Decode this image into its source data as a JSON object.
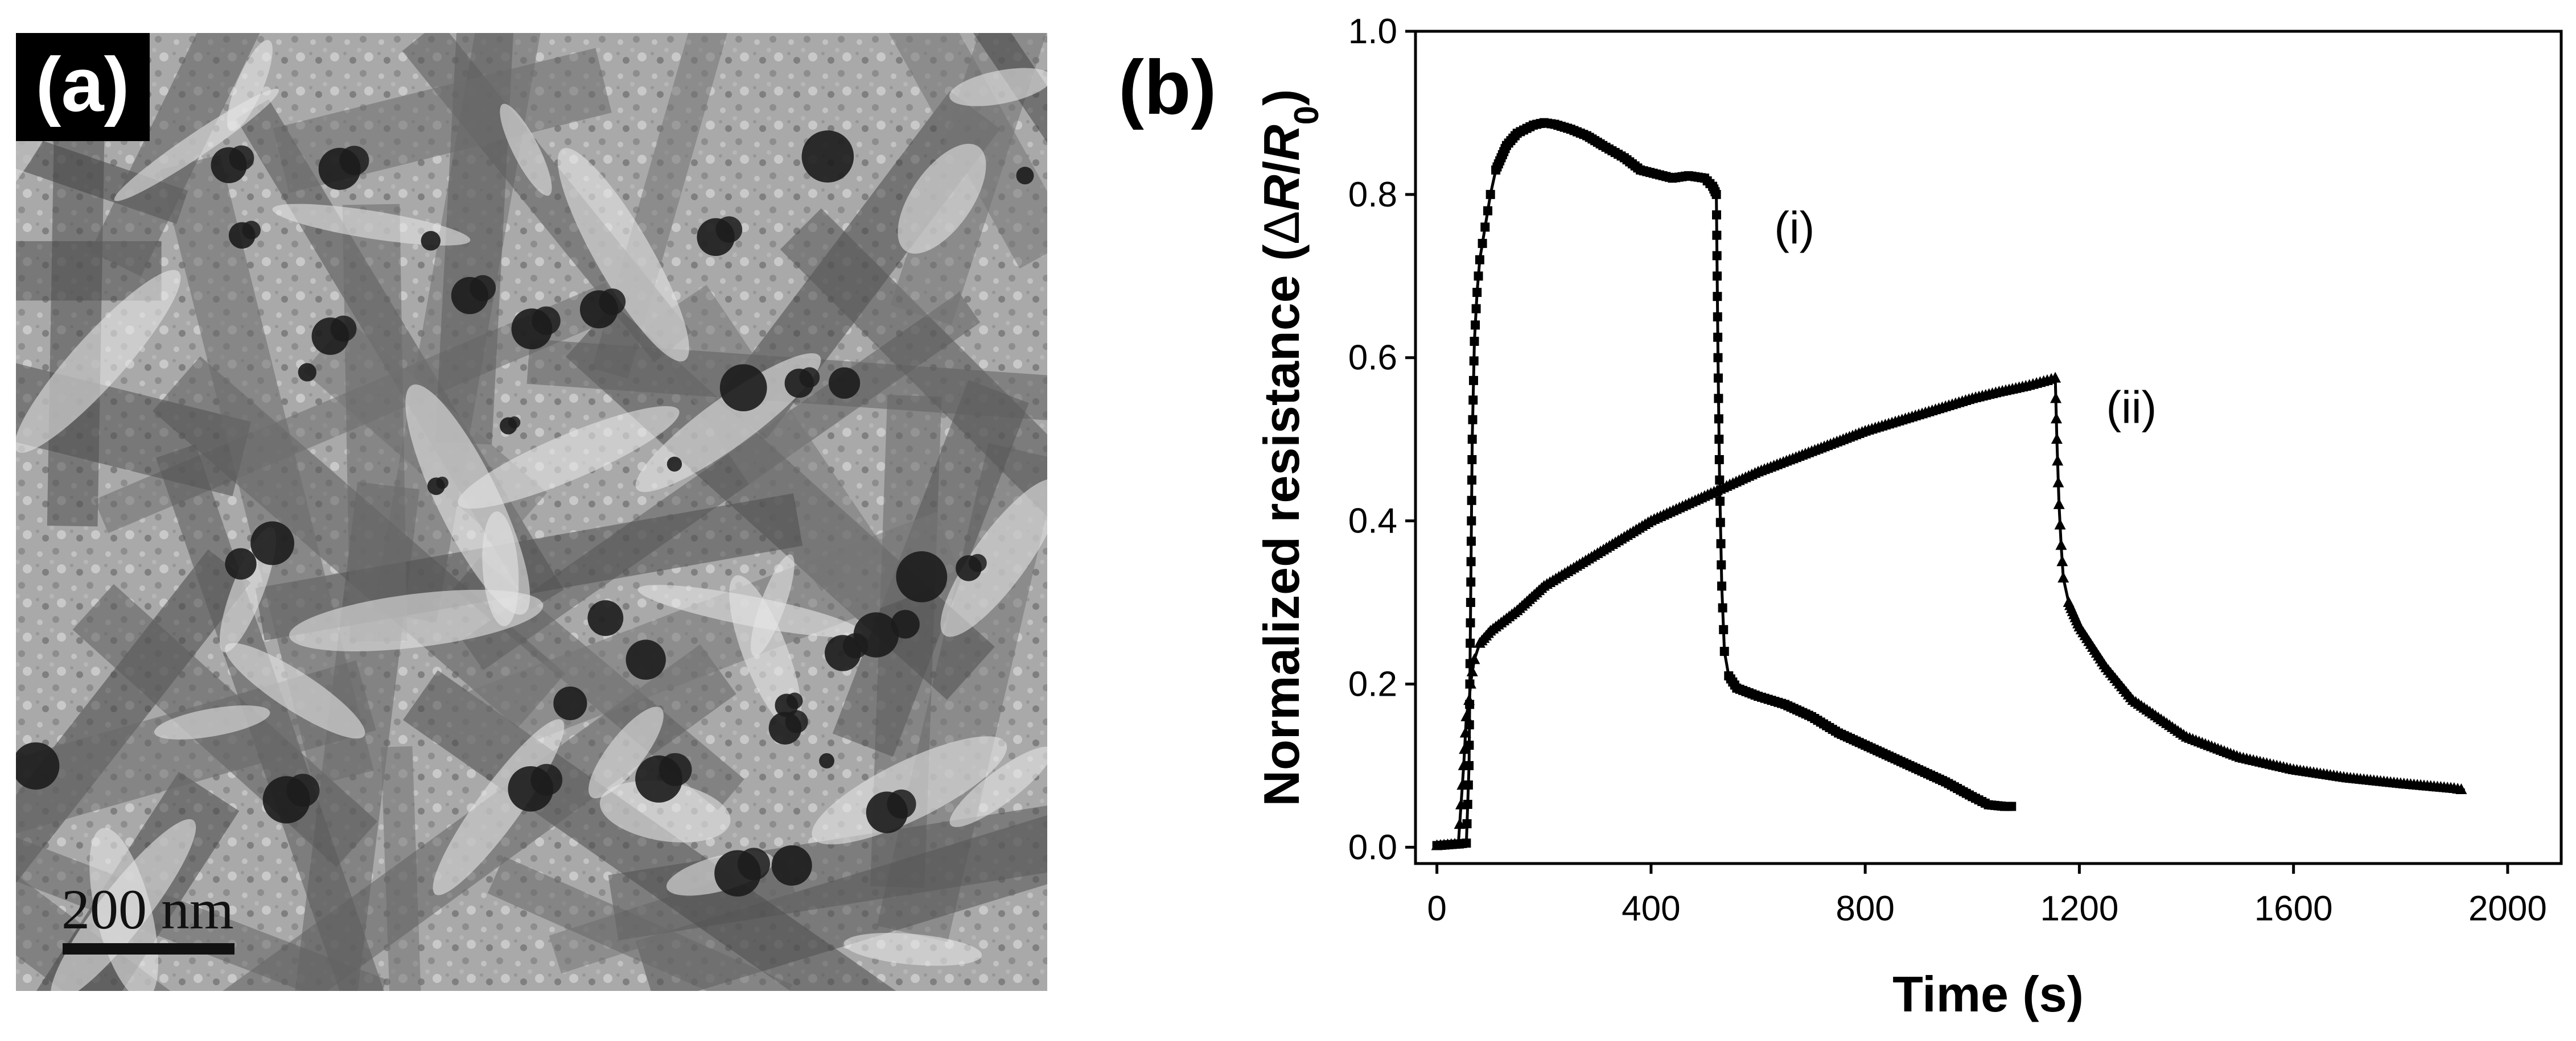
{
  "panel_a": {
    "label": "(a)",
    "scale_bar_label": "200 nm",
    "colors": {
      "background": "#a8a8a8",
      "particles": "#1c1c1c",
      "fibers": "#5f5f5f",
      "label_box": "#000000",
      "label_text": "#ffffff"
    }
  },
  "panel_b": {
    "label": "(b)"
  },
  "chart_data": {
    "type": "line",
    "title": "",
    "xlabel": "Time (s)",
    "ylabel": "Normalized resistance (ΔR/R0)",
    "ylabel_parts": {
      "prefix": "Normalized resistance (",
      "delta": "Δ",
      "R": "R",
      "slash": "/",
      "R0": "R",
      "subscript": "0",
      "suffix": ")"
    },
    "xlim": [
      -40,
      2100
    ],
    "ylim": [
      -0.02,
      1.0
    ],
    "x_ticks": [
      0,
      400,
      800,
      1200,
      1600,
      2000
    ],
    "x_tick_labels": [
      "0",
      "400",
      "800",
      "1200",
      "1600",
      "2000"
    ],
    "y_ticks": [
      0.0,
      0.2,
      0.4,
      0.6,
      0.8,
      1.0
    ],
    "y_tick_labels": [
      "0.0",
      "0.2",
      "0.4",
      "0.6",
      "0.8",
      "1.0"
    ],
    "grid": false,
    "legend": "none",
    "series": [
      {
        "name": "(i)",
        "color": "#000000",
        "marker": "square",
        "x": [
          0,
          20,
          40,
          55,
          60,
          63,
          66,
          70,
          75,
          80,
          90,
          100,
          110,
          130,
          150,
          180,
          200,
          220,
          250,
          280,
          310,
          350,
          380,
          410,
          440,
          470,
          500,
          515,
          522,
          525,
          528,
          532,
          537,
          545,
          560,
          600,
          650,
          700,
          750,
          800,
          850,
          900,
          950,
          1000,
          1030,
          1060,
          1080
        ],
        "y": [
          0.002,
          0.003,
          0.004,
          0.005,
          0.1,
          0.3,
          0.5,
          0.62,
          0.68,
          0.72,
          0.76,
          0.8,
          0.83,
          0.86,
          0.875,
          0.885,
          0.888,
          0.886,
          0.88,
          0.872,
          0.86,
          0.845,
          0.83,
          0.825,
          0.82,
          0.823,
          0.82,
          0.81,
          0.8,
          0.6,
          0.45,
          0.32,
          0.24,
          0.21,
          0.195,
          0.185,
          0.175,
          0.16,
          0.14,
          0.125,
          0.11,
          0.095,
          0.08,
          0.062,
          0.052,
          0.05,
          0.05
        ]
      },
      {
        "name": "(ii)",
        "color": "#000000",
        "marker": "triangle",
        "x": [
          0,
          20,
          40,
          50,
          55,
          60,
          63,
          66,
          70,
          80,
          100,
          150,
          200,
          300,
          400,
          500,
          600,
          700,
          800,
          900,
          1000,
          1050,
          1100,
          1140,
          1155,
          1158,
          1162,
          1166,
          1170,
          1180,
          1200,
          1250,
          1300,
          1400,
          1500,
          1600,
          1700,
          1800,
          1900,
          1920
        ],
        "y": [
          0.002,
          0.003,
          0.004,
          0.1,
          0.16,
          0.18,
          0.2,
          0.215,
          0.23,
          0.25,
          0.265,
          0.29,
          0.32,
          0.36,
          0.4,
          0.43,
          0.46,
          0.485,
          0.51,
          0.53,
          0.55,
          0.558,
          0.565,
          0.572,
          0.575,
          0.5,
          0.42,
          0.37,
          0.33,
          0.3,
          0.27,
          0.22,
          0.18,
          0.135,
          0.11,
          0.095,
          0.085,
          0.078,
          0.072,
          0.07
        ]
      }
    ],
    "annotations": [
      {
        "text": "(i)",
        "x": 630,
        "y": 0.74
      },
      {
        "text": "(ii)",
        "x": 1250,
        "y": 0.52
      }
    ]
  }
}
